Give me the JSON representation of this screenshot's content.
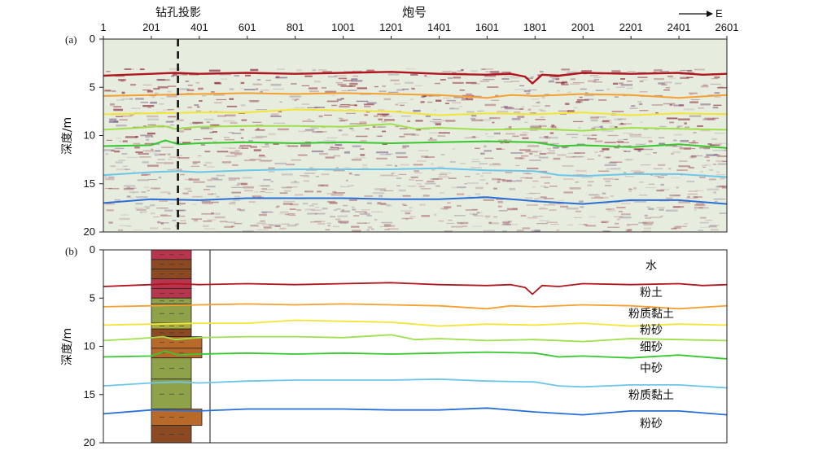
{
  "title_top": "炮号",
  "borehole_label": "钻孔投影",
  "direction_label": "E",
  "panel_a_label": "(a)",
  "panel_b_label": "(b)",
  "ylabel": "深度/m",
  "x_ticks": [
    "1",
    "201",
    "401",
    "601",
    "801",
    "1001",
    "1201",
    "1401",
    "1601",
    "1801",
    "2001",
    "2201",
    "2401",
    "2601"
  ],
  "y_ticks": [
    "0",
    "5",
    "10",
    "15",
    "20"
  ],
  "layer_names": [
    "水",
    "粉土",
    "粉质黏土",
    "粉砂",
    "细砂",
    "中砂",
    "粉质黏土",
    "粉砂"
  ],
  "colors": {
    "L1": "#b0161f",
    "L2": "#f5a030",
    "L3": "#f2e534",
    "L4": "#9ee04a",
    "L5": "#37c82e",
    "L6": "#6cc6ea",
    "L7": "#2a6fd6",
    "seismic_bg": "#e6ecde",
    "seismic_red": "#8a1c2c",
    "seismic_purple": "#7a5a86"
  },
  "chart_data": [
    {
      "type": "line",
      "title": "",
      "xlabel": "炮号",
      "ylabel": "深度/m",
      "xlim": [
        1,
        2601
      ],
      "ylim": [
        20,
        0
      ],
      "y_inverted": true,
      "borehole_x": 312,
      "series": [
        {
          "color": "#b0161f",
          "x": [
            1,
            100,
            200,
            300,
            400,
            600,
            800,
            1000,
            1200,
            1300,
            1400,
            1600,
            1700,
            1760,
            1790,
            1830,
            1900,
            2000,
            2200,
            2400,
            2500,
            2601
          ],
          "y": [
            3.8,
            3.7,
            3.6,
            3.5,
            3.6,
            3.5,
            3.6,
            3.5,
            3.4,
            3.5,
            3.6,
            3.7,
            3.6,
            3.9,
            4.6,
            3.7,
            3.8,
            3.5,
            3.6,
            3.5,
            3.7,
            3.6
          ]
        },
        {
          "color": "#f5a030",
          "x": [
            1,
            200,
            400,
            600,
            800,
            1000,
            1200,
            1400,
            1600,
            1700,
            1800,
            2000,
            2200,
            2400,
            2601
          ],
          "y": [
            5.9,
            5.8,
            5.7,
            5.6,
            5.7,
            5.6,
            5.7,
            5.8,
            6.1,
            5.8,
            5.9,
            5.7,
            5.8,
            6.1,
            5.8
          ]
        },
        {
          "color": "#f2e534",
          "x": [
            1,
            200,
            400,
            600,
            800,
            1000,
            1200,
            1400,
            1600,
            1800,
            2000,
            2200,
            2400,
            2601
          ],
          "y": [
            7.8,
            7.7,
            7.6,
            7.6,
            7.3,
            7.4,
            7.5,
            7.9,
            7.7,
            7.8,
            7.6,
            7.9,
            7.7,
            7.8
          ]
        },
        {
          "color": "#9ee04a",
          "x": [
            1,
            150,
            250,
            300,
            400,
            600,
            800,
            1000,
            1200,
            1300,
            1400,
            1600,
            1800,
            2000,
            2200,
            2400,
            2601
          ],
          "y": [
            9.4,
            9.2,
            9.0,
            9.3,
            9.1,
            9.0,
            9.0,
            9.1,
            8.8,
            9.3,
            9.2,
            9.4,
            9.3,
            9.5,
            9.2,
            9.3,
            9.4
          ]
        },
        {
          "color": "#37c82e",
          "x": [
            1,
            200,
            260,
            312,
            400,
            600,
            800,
            1000,
            1200,
            1400,
            1600,
            1800,
            1900,
            2000,
            2200,
            2400,
            2601
          ],
          "y": [
            11.1,
            11.0,
            10.5,
            10.9,
            10.8,
            10.7,
            10.8,
            10.7,
            10.8,
            10.7,
            10.6,
            10.7,
            11.1,
            11.0,
            11.2,
            10.9,
            11.3
          ]
        },
        {
          "color": "#6cc6ea",
          "x": [
            1,
            200,
            312,
            400,
            600,
            800,
            1000,
            1200,
            1400,
            1600,
            1800,
            1900,
            2000,
            2200,
            2400,
            2601
          ],
          "y": [
            14.1,
            13.8,
            13.7,
            13.8,
            13.6,
            13.5,
            13.5,
            13.5,
            13.4,
            13.6,
            13.7,
            14.1,
            14.2,
            14.0,
            14.0,
            14.3
          ]
        },
        {
          "color": "#2a6fd6",
          "x": [
            1,
            200,
            400,
            600,
            800,
            1000,
            1200,
            1400,
            1600,
            1800,
            2000,
            2200,
            2400,
            2601
          ],
          "y": [
            17.0,
            16.6,
            16.7,
            16.5,
            16.5,
            16.5,
            16.6,
            16.6,
            16.4,
            16.8,
            17.1,
            16.7,
            16.7,
            17.1
          ]
        }
      ]
    }
  ],
  "borehole_column": [
    {
      "top": 0.0,
      "bottom": 1.0,
      "color": "#b8364d",
      "wide": false
    },
    {
      "top": 1.0,
      "bottom": 2.0,
      "color": "#8c4a22",
      "wide": false
    },
    {
      "top": 2.0,
      "bottom": 3.0,
      "color": "#8c4a22",
      "wide": false
    },
    {
      "top": 3.0,
      "bottom": 4.0,
      "color": "#b8364d",
      "wide": false
    },
    {
      "top": 4.0,
      "bottom": 5.0,
      "color": "#b8364d",
      "wide": false
    },
    {
      "top": 5.0,
      "bottom": 5.6,
      "color": "#8fa24a",
      "wide": false
    },
    {
      "top": 5.6,
      "bottom": 7.6,
      "color": "#8fa24a",
      "wide": false
    },
    {
      "top": 7.6,
      "bottom": 8.2,
      "color": "#a9b03e",
      "wide": false
    },
    {
      "top": 8.2,
      "bottom": 9.0,
      "color": "#8c4a22",
      "wide": false
    },
    {
      "top": 9.0,
      "bottom": 10.2,
      "color": "#b86a2a",
      "wide": true
    },
    {
      "top": 10.2,
      "bottom": 11.2,
      "color": "#b86a2a",
      "wide": true
    },
    {
      "top": 11.2,
      "bottom": 13.4,
      "color": "#8fa24a",
      "wide": false
    },
    {
      "top": 13.4,
      "bottom": 16.5,
      "color": "#8fa24a",
      "wide": false
    },
    {
      "top": 16.5,
      "bottom": 18.2,
      "color": "#b86a2a",
      "wide": true
    },
    {
      "top": 18.2,
      "bottom": 20.0,
      "color": "#8c4a22",
      "wide": false
    }
  ]
}
